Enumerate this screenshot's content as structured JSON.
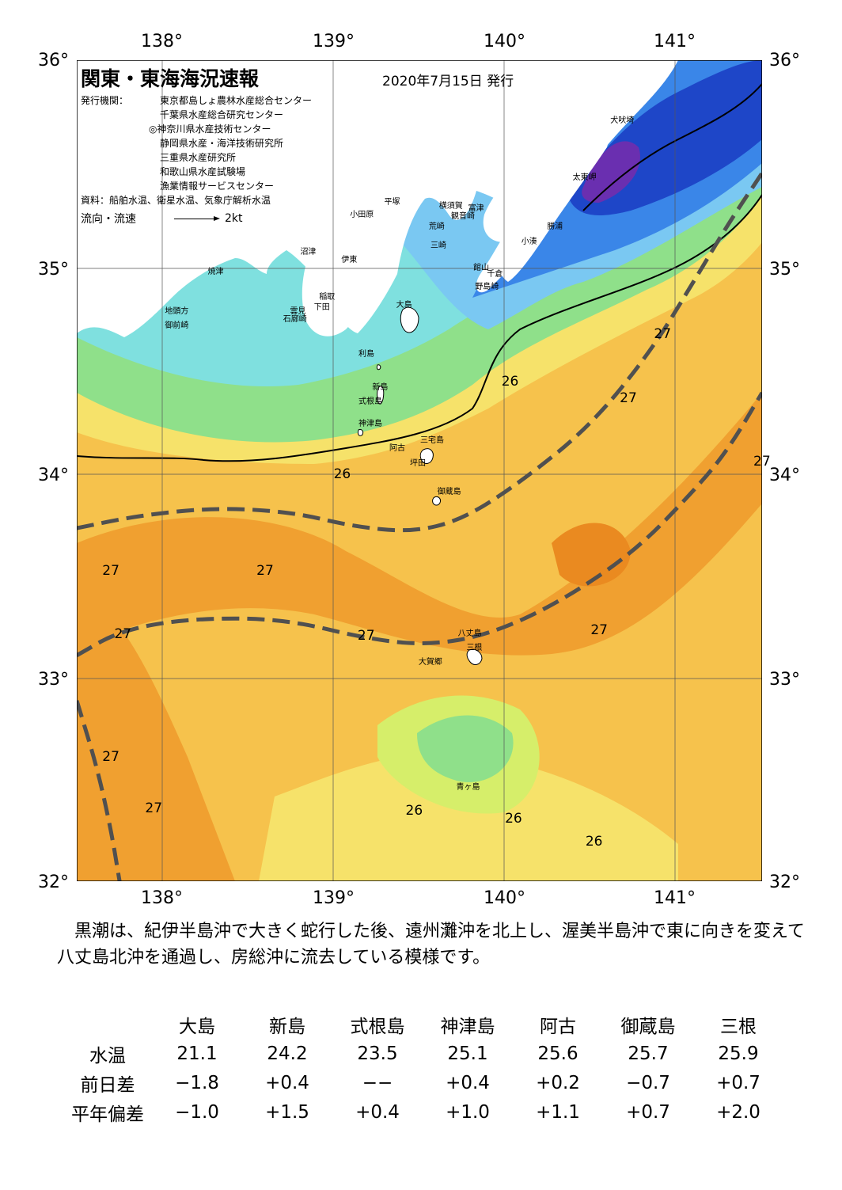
{
  "title": "関東・東海海況速報",
  "issue_date": "2020年7月15日 発行",
  "agency_label": "発行機関：",
  "agencies": [
    "東京都島しょ農林水産総合センター",
    "千葉県水産総合研究センター",
    "◎神奈川県水産技術センター",
    "静岡県水産・海洋技術研究所",
    "三重県水産研究所",
    "和歌山県水産試験場",
    "漁業情報サービスセンター"
  ],
  "source": "資料：船舶水温、衛星水温、気象庁解析水温",
  "flow_label": "流向・流速",
  "flow_scale": "2kt",
  "axes": {
    "longitude_labels": [
      "138°",
      "139°",
      "140°",
      "141°"
    ],
    "latitude_labels": [
      "36°",
      "35°",
      "34°",
      "33°",
      "32°"
    ],
    "lon_range": [
      137.5,
      141.5
    ],
    "lat_range": [
      32,
      36
    ]
  },
  "places": [
    {
      "name": "犬吠埼",
      "lon": 140.67,
      "lat": 35.72
    },
    {
      "name": "太東岬",
      "lon": 140.45,
      "lat": 35.44
    },
    {
      "name": "勝浦",
      "lon": 140.3,
      "lat": 35.2
    },
    {
      "name": "小湊",
      "lon": 140.15,
      "lat": 35.13
    },
    {
      "name": "富津",
      "lon": 139.84,
      "lat": 35.29
    },
    {
      "name": "館山",
      "lon": 139.87,
      "lat": 35.0
    },
    {
      "name": "千倉",
      "lon": 139.95,
      "lat": 34.97
    },
    {
      "name": "野島崎",
      "lon": 139.88,
      "lat": 34.91
    },
    {
      "name": "横須賀",
      "lon": 139.67,
      "lat": 35.3
    },
    {
      "name": "観音崎",
      "lon": 139.74,
      "lat": 35.25
    },
    {
      "name": "荒崎",
      "lon": 139.61,
      "lat": 35.2
    },
    {
      "name": "三崎",
      "lon": 139.62,
      "lat": 35.11
    },
    {
      "name": "平塚",
      "lon": 139.35,
      "lat": 35.32
    },
    {
      "name": "小田原",
      "lon": 139.15,
      "lat": 35.26
    },
    {
      "name": "沼津",
      "lon": 138.86,
      "lat": 35.08
    },
    {
      "name": "伊東",
      "lon": 139.1,
      "lat": 35.04
    },
    {
      "name": "焼津",
      "lon": 138.32,
      "lat": 34.98
    },
    {
      "name": "稲取",
      "lon": 138.97,
      "lat": 34.86
    },
    {
      "name": "下田",
      "lon": 138.94,
      "lat": 34.81
    },
    {
      "name": "雲見",
      "lon": 138.8,
      "lat": 34.79
    },
    {
      "name": "石廊崎",
      "lon": 138.76,
      "lat": 34.75
    },
    {
      "name": "地頭方",
      "lon": 138.07,
      "lat": 34.79
    },
    {
      "name": "御前崎",
      "lon": 138.07,
      "lat": 34.72
    },
    {
      "name": "大島",
      "lon": 139.42,
      "lat": 34.82
    },
    {
      "name": "利島",
      "lon": 139.2,
      "lat": 34.58
    },
    {
      "name": "新島",
      "lon": 139.28,
      "lat": 34.42
    },
    {
      "name": "式根島",
      "lon": 139.2,
      "lat": 34.35
    },
    {
      "name": "神津島",
      "lon": 139.2,
      "lat": 34.24
    },
    {
      "name": "三宅島",
      "lon": 139.56,
      "lat": 34.16
    },
    {
      "name": "阿古",
      "lon": 139.38,
      "lat": 34.12
    },
    {
      "name": "坪田",
      "lon": 139.5,
      "lat": 34.05
    },
    {
      "name": "御蔵島",
      "lon": 139.66,
      "lat": 33.91
    },
    {
      "name": "八丈島",
      "lon": 139.78,
      "lat": 33.22
    },
    {
      "name": "三根",
      "lon": 139.83,
      "lat": 33.15
    },
    {
      "name": "大賀郷",
      "lon": 139.55,
      "lat": 33.08
    },
    {
      "name": "青ヶ島",
      "lon": 139.77,
      "lat": 32.47
    }
  ],
  "isotherm_labels": [
    {
      "text": "27",
      "lon": 140.92,
      "lat": 34.66
    },
    {
      "text": "27",
      "lon": 140.72,
      "lat": 34.35
    },
    {
      "text": "26",
      "lon": 140.03,
      "lat": 34.43
    },
    {
      "text": "26",
      "lon": 139.05,
      "lat": 33.98
    },
    {
      "text": "27",
      "lon": 141.5,
      "lat": 34.04
    },
    {
      "text": "27",
      "lon": 137.7,
      "lat": 33.51
    },
    {
      "text": "27",
      "lon": 138.6,
      "lat": 33.51
    },
    {
      "text": "27",
      "lon": 137.77,
      "lat": 33.2
    },
    {
      "text": "27",
      "lon": 139.19,
      "lat": 33.19
    },
    {
      "text": "27",
      "lon": 140.55,
      "lat": 33.22
    },
    {
      "text": "27",
      "lon": 137.7,
      "lat": 32.6
    },
    {
      "text": "27",
      "lon": 137.95,
      "lat": 32.35
    },
    {
      "text": "26",
      "lon": 139.47,
      "lat": 32.34
    },
    {
      "text": "26",
      "lon": 140.05,
      "lat": 32.3
    },
    {
      "text": "26",
      "lon": 140.52,
      "lat": 32.19
    }
  ],
  "kuroshio_paths": [
    [
      [
        137.5,
        33.72
      ],
      [
        137.85,
        33.78
      ],
      [
        138.3,
        33.82
      ],
      [
        138.75,
        33.8
      ],
      [
        139.1,
        33.73
      ],
      [
        139.45,
        33.7
      ],
      [
        139.75,
        33.76
      ],
      [
        140.1,
        33.95
      ],
      [
        140.5,
        34.22
      ],
      [
        140.85,
        34.58
      ],
      [
        141.1,
        34.92
      ],
      [
        141.3,
        35.2
      ],
      [
        141.5,
        35.45
      ]
    ],
    [
      [
        137.5,
        33.1
      ],
      [
        137.75,
        33.22
      ],
      [
        138.15,
        33.28
      ],
      [
        138.7,
        33.28
      ],
      [
        139.2,
        33.18
      ],
      [
        139.55,
        33.15
      ],
      [
        139.9,
        33.2
      ],
      [
        140.3,
        33.35
      ],
      [
        140.75,
        33.6
      ],
      [
        141.1,
        33.9
      ],
      [
        141.3,
        34.1
      ],
      [
        141.5,
        34.38
      ]
    ],
    [
      [
        137.5,
        32.88
      ],
      [
        137.62,
        32.55
      ],
      [
        137.7,
        32.25
      ],
      [
        137.75,
        32.0
      ]
    ]
  ],
  "summary": "黒潮は、紀伊半島沖で大きく蛇行した後、遠州灘沖を北上し、渥美半島沖で東に向きを変えて八丈島北沖を通過し、房総沖に流去している模様です。",
  "table": {
    "headers": [
      "大島",
      "新島",
      "式根島",
      "神津島",
      "阿古",
      "御蔵島",
      "三根"
    ],
    "rows": [
      {
        "label": "水温",
        "values": [
          "21.1",
          "24.2",
          "23.5",
          "25.1",
          "25.6",
          "25.7",
          "25.9"
        ]
      },
      {
        "label": "前日差",
        "values": [
          "−1.8",
          "+0.4",
          "−−",
          "+0.4",
          "+0.2",
          "−0.7",
          "+0.7"
        ]
      },
      {
        "label": "平年偏差",
        "values": [
          "−1.0",
          "+1.5",
          "+0.4",
          "+1.0",
          "+1.1",
          "+0.7",
          "+2.0"
        ]
      }
    ]
  },
  "colors": {
    "cold_deep": "#6a2fb0",
    "cold": "#1e46c8",
    "blue": "#3a86e8",
    "light_blue": "#7ac8f2",
    "cyan": "#7fe0df",
    "green": "#8fe08a",
    "yellow_green": "#d6ee6a",
    "yellow": "#f6e26a",
    "light_orange": "#f6c24c",
    "orange": "#f0a030",
    "deep_orange": "#ea8a20",
    "kuroshio_line": "#505050"
  }
}
